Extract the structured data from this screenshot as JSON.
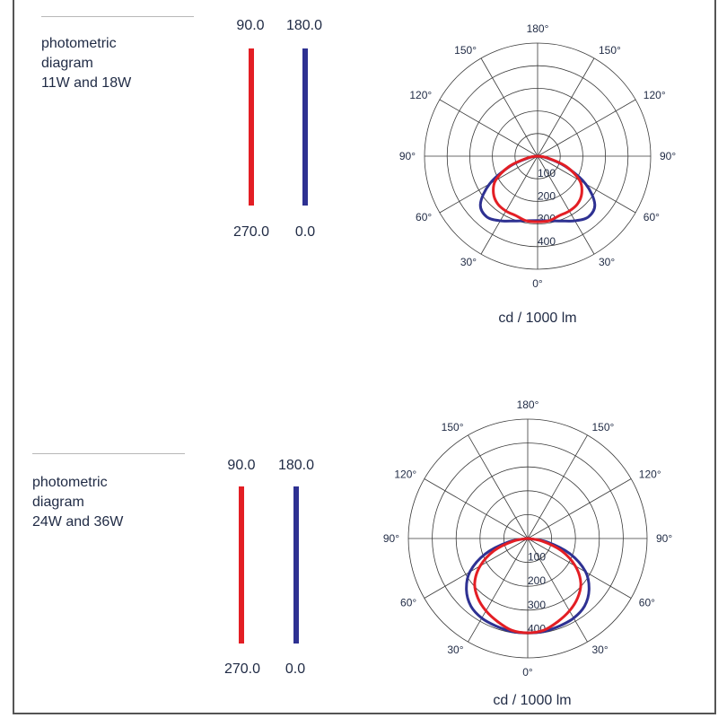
{
  "colors": {
    "c0": "#2e3192",
    "c90": "#e31e24",
    "grid": "#3a3a3a"
  },
  "chart_data": [
    {
      "type": "polar",
      "title_lines": [
        "photometric",
        "diagram",
        "11W and 18W"
      ],
      "legend": {
        "red_top": "90.0",
        "red_bottom": "270.0",
        "blue_top": "180.0",
        "blue_bottom": "0.0"
      },
      "unit": "cd / 1000 lm",
      "radial_ticks": [
        "100",
        "200",
        "300",
        "400"
      ],
      "rmax": 500,
      "angle_labels": {
        "top": "180°",
        "upper_left": "150°",
        "upper_right": "150°",
        "mid_upper_left": "120°",
        "mid_upper_right": "120°",
        "left": "90°",
        "right": "90°",
        "lower_left": "60°",
        "lower_right": "60°",
        "bottom_left": "30°",
        "bottom_right": "30°",
        "bottom": "0°"
      },
      "series": [
        {
          "name": "0.0",
          "color": "#2e3192",
          "angles": [
            0,
            10,
            20,
            30,
            40,
            50,
            60,
            70,
            80,
            90
          ],
          "values": [
            285,
            290,
            305,
            330,
            350,
            330,
            245,
            130,
            40,
            0
          ]
        },
        {
          "name": "90.0",
          "color": "#e31e24",
          "angles": [
            0,
            10,
            20,
            30,
            40,
            50,
            60,
            70,
            80,
            90
          ],
          "values": [
            290,
            290,
            280,
            280,
            275,
            255,
            215,
            135,
            45,
            0
          ]
        }
      ]
    },
    {
      "type": "polar",
      "title_lines": [
        "photometric",
        "diagram",
        "24W and 36W"
      ],
      "legend": {
        "red_top": "90.0",
        "red_bottom": "270.0",
        "blue_top": "180.0",
        "blue_bottom": "0.0"
      },
      "unit": "cd / 1000 lm",
      "radial_ticks": [
        "100",
        "200",
        "300",
        "400"
      ],
      "rmax": 500,
      "angle_labels": {
        "top": "180°",
        "upper_left": "150°",
        "upper_right": "150°",
        "mid_upper_left": "120°",
        "mid_upper_right": "120°",
        "left": "90°",
        "right": "90°",
        "lower_left": "60°",
        "lower_right": "60°",
        "bottom_left": "30°",
        "bottom_right": "30°",
        "bottom": "0°"
      },
      "series": [
        {
          "name": "0.0",
          "color": "#2e3192",
          "angles": [
            0,
            10,
            20,
            30,
            40,
            50,
            60,
            70,
            80,
            90
          ],
          "values": [
            395,
            395,
            390,
            385,
            370,
            335,
            280,
            190,
            80,
            0
          ]
        },
        {
          "name": "90.0",
          "color": "#e31e24",
          "angles": [
            0,
            10,
            20,
            30,
            40,
            50,
            60,
            70,
            80,
            90
          ],
          "values": [
            395,
            390,
            370,
            350,
            325,
            290,
            230,
            150,
            60,
            0
          ]
        }
      ]
    }
  ]
}
